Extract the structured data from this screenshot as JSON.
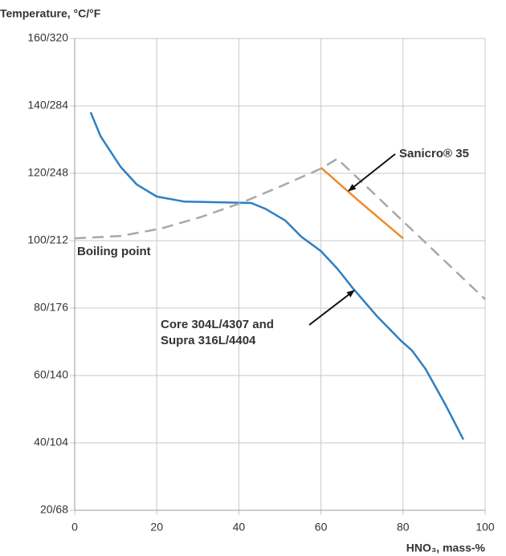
{
  "chart_data": {
    "type": "line",
    "ylabel": "Temperature, °C/°F",
    "xlabel": "HNO₃, mass-%",
    "xlim": [
      0,
      100
    ],
    "xticks": [
      0,
      20,
      40,
      60,
      80,
      100
    ],
    "ylim": [
      20,
      160
    ],
    "yticks": [
      {
        "value": 20,
        "label": "20/68"
      },
      {
        "value": 40,
        "label": "40/104"
      },
      {
        "value": 60,
        "label": "60/140"
      },
      {
        "value": 80,
        "label": "80/176"
      },
      {
        "value": 100,
        "label": "100/212"
      },
      {
        "value": 120,
        "label": "120/248"
      },
      {
        "value": 140,
        "label": "140/284"
      },
      {
        "value": 160,
        "label": "160/320"
      }
    ],
    "grid": true,
    "series": [
      {
        "name": "Core 304L/4307 and\nSupra 316L/4404",
        "color": "#2f7fc1",
        "dash": false,
        "x": [
          3.9,
          6.3,
          11.2,
          15.1,
          20,
          26.8,
          35,
          43,
          46.4,
          51.3,
          55.2,
          60,
          64,
          67.9,
          73.8,
          79.6,
          82.2,
          85.5,
          90.4,
          94.7
        ],
        "values": [
          138.1,
          131,
          121.9,
          116.7,
          113.1,
          111.6,
          111.4,
          111.2,
          109.5,
          106,
          101.2,
          96.9,
          91.7,
          85.7,
          77.4,
          70.2,
          67.4,
          61.9,
          51.2,
          41
        ]
      },
      {
        "name": "Sanicro® 35",
        "color": "#f08a2c",
        "dash": false,
        "x": [
          60,
          70,
          80
        ],
        "values": [
          121.7,
          111,
          100.7
        ]
      },
      {
        "name": "Boiling point",
        "color": "#a8a8a8",
        "dash": true,
        "x": [
          0,
          11.2,
          21,
          30.7,
          40.5,
          50.3,
          60,
          64,
          100
        ],
        "values": [
          100.7,
          101.4,
          103.6,
          107,
          111.2,
          116.2,
          121.4,
          124.3,
          82.6
        ]
      }
    ]
  }
}
